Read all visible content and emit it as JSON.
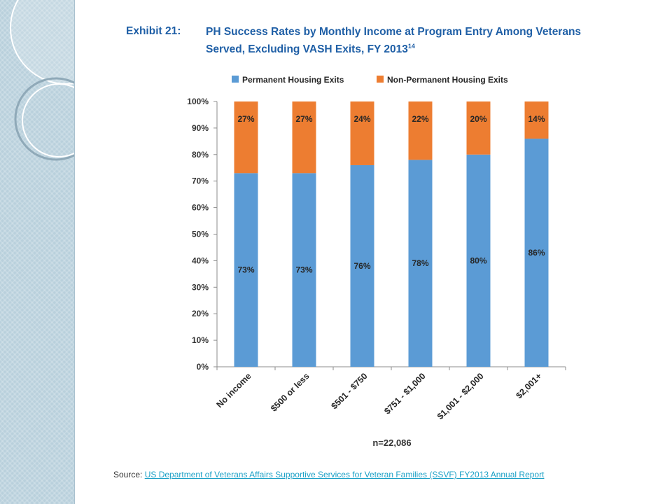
{
  "exhibit_label": "Exhibit 21:",
  "title": "PH Success Rates by Monthly Income at Program Entry Among Veterans Served, Excluding VASH Exits, FY 2013",
  "title_footnote": "14",
  "sample_size": "n=22,086",
  "source": {
    "prefix": "Source:",
    "link_text": "US Department of Veterans Affairs Supportive Services for Veteran Families (SSVF) FY2013 Annual Report"
  },
  "colors": {
    "permanent": "#5b9bd5",
    "non_permanent": "#ed7d31",
    "title": "#1f5fa6",
    "link": "#1aa0c6"
  },
  "chart_data": {
    "type": "bar",
    "stacked": true,
    "categories": [
      "No income",
      "$500 or less",
      "$501 - $750",
      "$751 - $1,000",
      "$1,001 - $2,000",
      "$2,001+"
    ],
    "series": [
      {
        "name": "Permanent Housing Exits",
        "values": [
          73,
          73,
          76,
          78,
          80,
          86
        ],
        "labels": [
          "73%",
          "73%",
          "76%",
          "78%",
          "80%",
          "86%"
        ]
      },
      {
        "name": "Non-Permanent Housing Exits",
        "values": [
          27,
          27,
          24,
          22,
          20,
          14
        ],
        "labels": [
          "27%",
          "27%",
          "24%",
          "22%",
          "20%",
          "14%"
        ]
      }
    ],
    "ylim": [
      0,
      100
    ],
    "yticks": [
      "0%",
      "10%",
      "20%",
      "30%",
      "40%",
      "50%",
      "60%",
      "70%",
      "80%",
      "90%",
      "100%"
    ],
    "legend_position": "top",
    "grid": false
  }
}
